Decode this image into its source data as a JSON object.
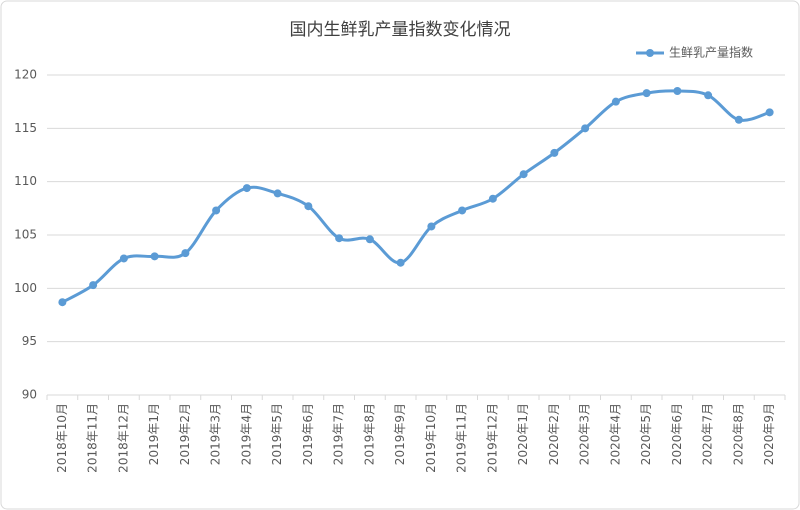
{
  "chart_data": {
    "type": "line",
    "title": "国内生鲜乳产量指数变化情况",
    "categories": [
      "2018年10月",
      "2018年11月",
      "2018年12月",
      "2019年1月",
      "2019年2月",
      "2019年3月",
      "2019年4月",
      "2019年5月",
      "2019年6月",
      "2019年7月",
      "2019年8月",
      "2019年9月",
      "2019年10月",
      "2019年11月",
      "2019年12月",
      "2020年1月",
      "2020年2月",
      "2020年3月",
      "2020年4月",
      "2020年5月",
      "2020年6月",
      "2020年7月",
      "2020年8月",
      "2020年9月"
    ],
    "series": [
      {
        "name": "生鲜乳产量指数",
        "color": "#5b9bd5",
        "values": [
          98.7,
          100.3,
          102.8,
          103.0,
          103.3,
          107.3,
          109.4,
          108.9,
          107.7,
          104.7,
          104.6,
          102.4,
          105.8,
          107.3,
          108.4,
          110.7,
          112.7,
          115.0,
          117.5,
          118.3,
          118.5,
          118.1,
          115.8,
          116.5
        ]
      }
    ],
    "ylim": [
      90,
      120
    ],
    "yticks": [
      90,
      95,
      100,
      105,
      110,
      115,
      120
    ],
    "grid": true,
    "smooth": true,
    "legend": "top-right"
  }
}
